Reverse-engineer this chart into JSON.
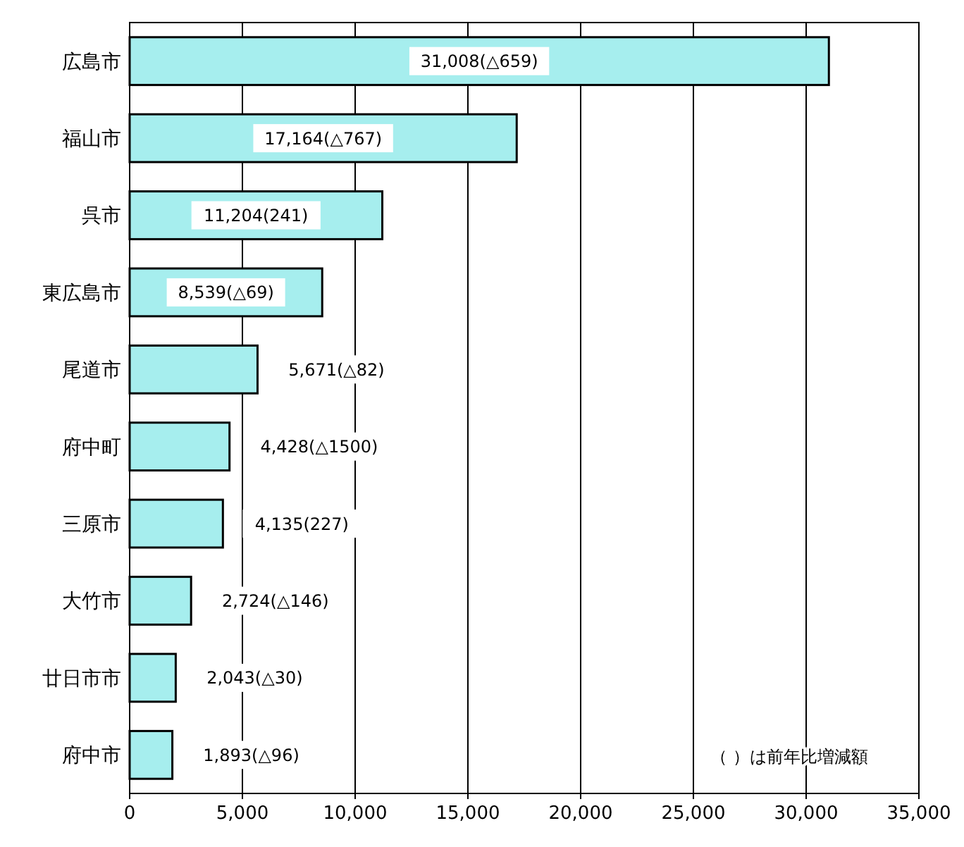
{
  "chart_data": {
    "type": "bar",
    "orientation": "horizontal",
    "categories": [
      "広島市",
      "福山市",
      "呉市",
      "東広島市",
      "尾道市",
      "府中町",
      "三原市",
      "大竹市",
      "廿日市市",
      "府中市"
    ],
    "values": [
      31008,
      17164,
      11204,
      8539,
      5671,
      4428,
      4135,
      2724,
      2043,
      1893
    ],
    "value_labels": [
      "31,008(△659)",
      "17,164(△767)",
      "11,204(241)",
      "8,539(△69)",
      "5,671(△82)",
      "4,428(△1500)",
      "4,135(227)",
      "2,724(△146)",
      "2,043(△30)",
      "1,893(△96)"
    ],
    "color": "#a6eeee",
    "xlim": [
      0,
      35000
    ],
    "xticks": [
      0,
      {
        "value": 5000,
        "label": "5,000"
      },
      {
        "value": 10000,
        "label": "10,000"
      },
      {
        "value": 15000,
        "label": "15,000"
      },
      {
        "value": 20000,
        "label": "20,000"
      },
      {
        "value": 25000,
        "label": "25,000"
      },
      {
        "value": 30000,
        "label": "30,000"
      },
      {
        "value": 35000,
        "label": "35,000"
      }
    ],
    "grid": "x",
    "annotations": [
      "（ ）は前年比増減額"
    ]
  }
}
